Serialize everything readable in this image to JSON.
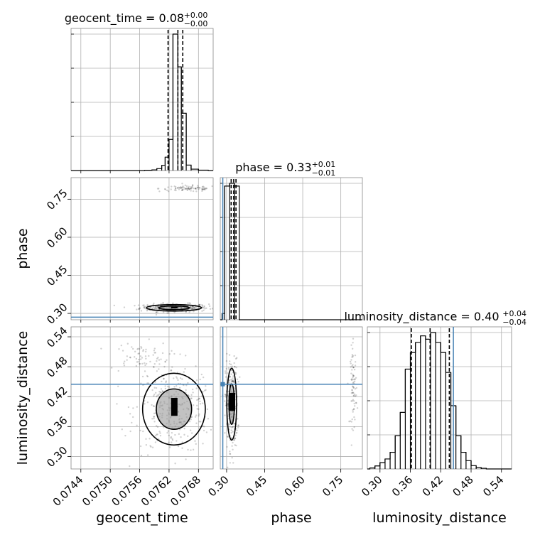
{
  "chart_data": {
    "type": "corner",
    "parameters": [
      "geocent_time",
      "phase",
      "luminosity_distance"
    ],
    "titles": [
      {
        "param": "geocent_time",
        "prefix": "geocent_time = ",
        "value": "0.08",
        "plus": "+0.00",
        "minus": "−0.00"
      },
      {
        "param": "phase",
        "prefix": "phase = ",
        "value": "0.33",
        "plus": "+0.01",
        "minus": "−0.01"
      },
      {
        "param": "luminosity_distance",
        "prefix": "luminosity_distance = ",
        "value": "0.40",
        "plus": "+0.04",
        "minus": "−0.04"
      }
    ],
    "ranges": {
      "geocent_time": [
        0.0742,
        0.0771
      ],
      "phase": [
        0.275,
        0.835
      ],
      "luminosity_distance": [
        0.275,
        0.56
      ]
    },
    "ticks": {
      "geocent_time": [
        "0.0744",
        "0.0750",
        "0.0756",
        "0.0762",
        "0.0768"
      ],
      "phase": [
        "0.30",
        "0.45",
        "0.60",
        "0.75"
      ],
      "luminosity_distance": [
        "0.30",
        "0.36",
        "0.42",
        "0.48",
        "0.54"
      ]
    },
    "truths": {
      "phase": 0.285,
      "luminosity_distance": 0.445
    },
    "quantiles": {
      "geocent_time": [
        0.07618,
        0.07638,
        0.07648
      ],
      "phase": [
        0.318,
        0.328,
        0.337
      ],
      "luminosity_distance": [
        0.362,
        0.399,
        0.437
      ]
    },
    "histograms": {
      "geocent_time": {
        "edges": [
          0.0757,
          0.07585,
          0.07595,
          0.07605,
          0.07612,
          0.0762,
          0.07628,
          0.07638,
          0.07645,
          0.07655,
          0.07665,
          0.0768,
          0.077
        ],
        "counts": [
          2,
          5,
          14,
          38,
          98,
          228,
          1000,
          760,
          420,
          40,
          10,
          3
        ]
      },
      "phase": {
        "edges": [
          0.282,
          0.292,
          0.312,
          0.331,
          0.35
        ],
        "counts": [
          46,
          980,
          1000,
          980
        ]
      },
      "luminosity_distance": {
        "edges": [
          0.28,
          0.29,
          0.3,
          0.31,
          0.32,
          0.33,
          0.34,
          0.35,
          0.36,
          0.37,
          0.38,
          0.39,
          0.4,
          0.41,
          0.42,
          0.43,
          0.44,
          0.45,
          0.46,
          0.47,
          0.48,
          0.49,
          0.5,
          0.51
        ],
        "counts": [
          6,
          18,
          38,
          60,
          100,
          200,
          340,
          600,
          700,
          760,
          800,
          780,
          820,
          760,
          700,
          580,
          380,
          200,
          100,
          50,
          20,
          8,
          4
        ]
      }
    },
    "scatter_clusters": {
      "geocent_time_vs_phase": [
        {
          "x_center": 0.0763,
          "y_center": 0.322,
          "x_spread": 0.00035,
          "y_spread": 0.008,
          "n": 300
        },
        {
          "x_center": 0.0766,
          "y_center": 0.792,
          "x_spread": 0.0003,
          "y_spread": 0.006,
          "n": 90
        }
      ],
      "geocent_time_vs_luminosity_distance": [
        {
          "x_center": 0.0763,
          "y_center": 0.395,
          "x_spread": 0.0004,
          "y_spread": 0.045,
          "n": 320
        },
        {
          "x_center": 0.0756,
          "y_center": 0.5,
          "x_spread": 0.0003,
          "y_spread": 0.015,
          "n": 70
        }
      ],
      "phase_vs_luminosity_distance": [
        {
          "x_center": 0.32,
          "y_center": 0.405,
          "x_spread": 0.012,
          "y_spread": 0.045,
          "n": 280
        },
        {
          "x_center": 0.8,
          "y_center": 0.44,
          "x_spread": 0.006,
          "y_spread": 0.04,
          "n": 80
        }
      ]
    },
    "grid": true
  }
}
